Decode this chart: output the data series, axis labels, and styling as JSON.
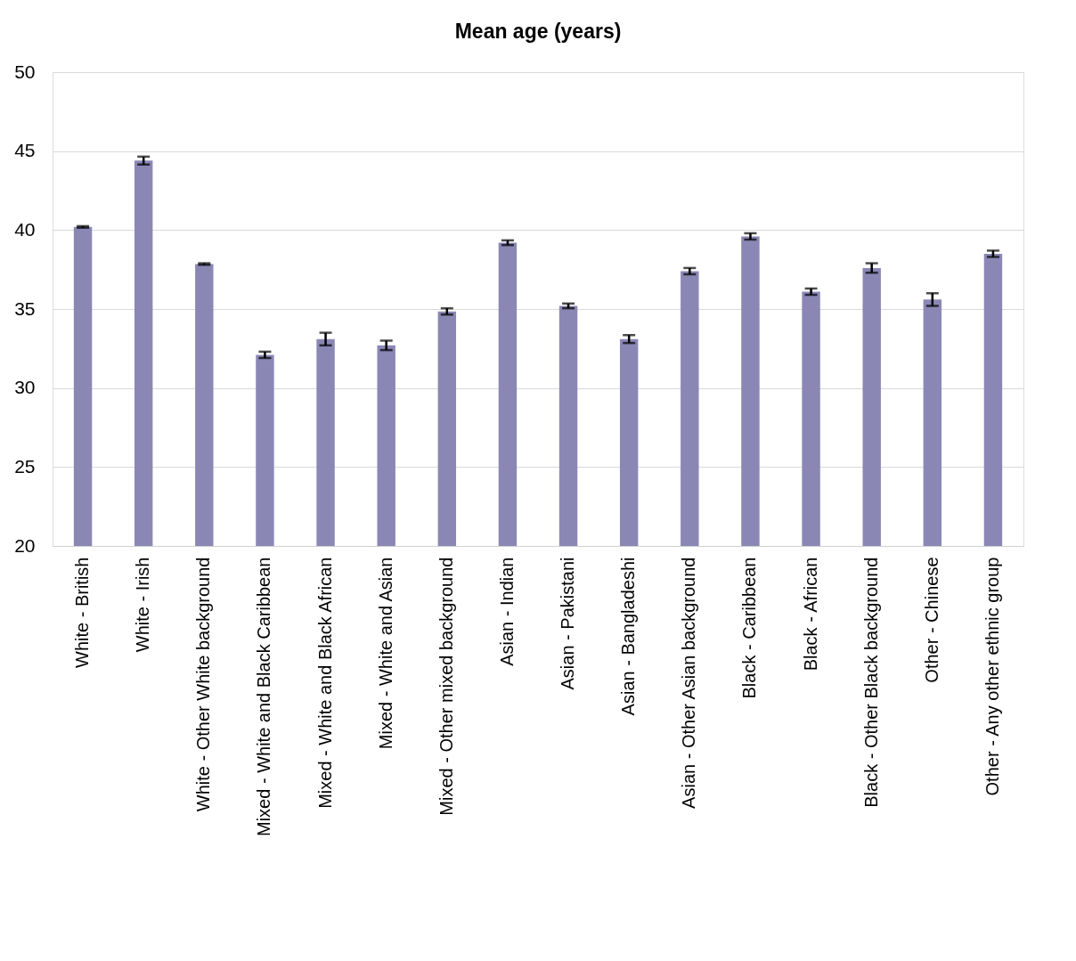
{
  "chart_data": {
    "type": "bar",
    "title": "Mean age (years)",
    "categories": [
      "White - British",
      "White - Irish",
      "White - Other White background",
      "Mixed - White and Black Caribbean",
      "Mixed - White and Black African",
      "Mixed - White and Asian",
      "Mixed - Other mixed background",
      "Asian - Indian",
      "Asian - Pakistani",
      "Asian - Bangladeshi",
      "Asian - Other Asian background",
      "Black - Caribbean",
      "Black - African",
      "Black - Other Black background",
      "Other - Chinese",
      "Other - Any other ethnic group"
    ],
    "values": [
      40.2,
      44.4,
      37.85,
      32.1,
      33.1,
      32.7,
      34.85,
      39.2,
      35.2,
      33.1,
      37.4,
      39.6,
      36.1,
      37.6,
      35.6,
      38.5
    ],
    "errors": [
      0.05,
      0.25,
      0.05,
      0.2,
      0.4,
      0.3,
      0.2,
      0.15,
      0.15,
      0.25,
      0.2,
      0.2,
      0.2,
      0.3,
      0.4,
      0.2
    ],
    "color": "#8b87b5",
    "ylim": [
      20,
      50
    ],
    "yticks": [
      20,
      25,
      30,
      35,
      40,
      45,
      50
    ],
    "grid": "y"
  }
}
